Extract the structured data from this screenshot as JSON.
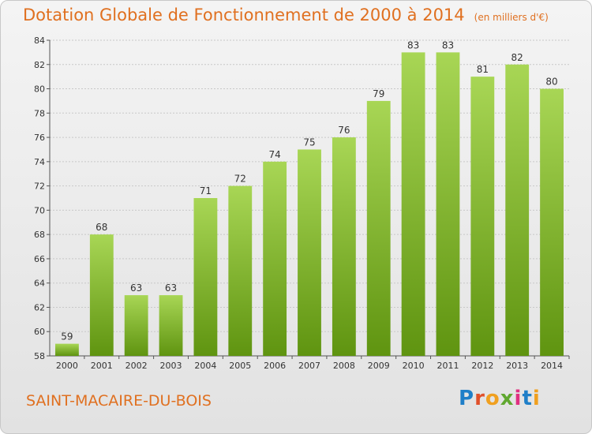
{
  "header": {
    "title": "Dotation Globale de Fonctionnement de 2000 à 2014",
    "unit": "(en milliers d'€)"
  },
  "commune": "SAINT-MACAIRE-DU-BOIS",
  "logo": {
    "text": "Proxiti",
    "colors": [
      "#1f7fc8",
      "#e0502a",
      "#f0a020",
      "#60a830",
      "#e03080",
      "#1f7fc8",
      "#f0a020"
    ]
  },
  "colors": {
    "title": "#e07020",
    "bar_top": "#a8d655",
    "bar_bottom": "#5f9410",
    "grid": "#c8c8c8"
  },
  "chart_data": {
    "type": "bar",
    "title": "Dotation Globale de Fonctionnement de 2000 à 2014",
    "categories": [
      "2000",
      "2001",
      "2002",
      "2003",
      "2004",
      "2005",
      "2006",
      "2007",
      "2008",
      "2009",
      "2010",
      "2011",
      "2012",
      "2013",
      "2014"
    ],
    "values": [
      59,
      68,
      63,
      63,
      71,
      72,
      74,
      75,
      76,
      79,
      83,
      83,
      81,
      82,
      80
    ],
    "ylim": [
      58,
      84
    ],
    "yticks": [
      58,
      60,
      62,
      64,
      66,
      68,
      70,
      72,
      74,
      76,
      78,
      80,
      82,
      84
    ],
    "grid": true,
    "data_labels": true
  }
}
